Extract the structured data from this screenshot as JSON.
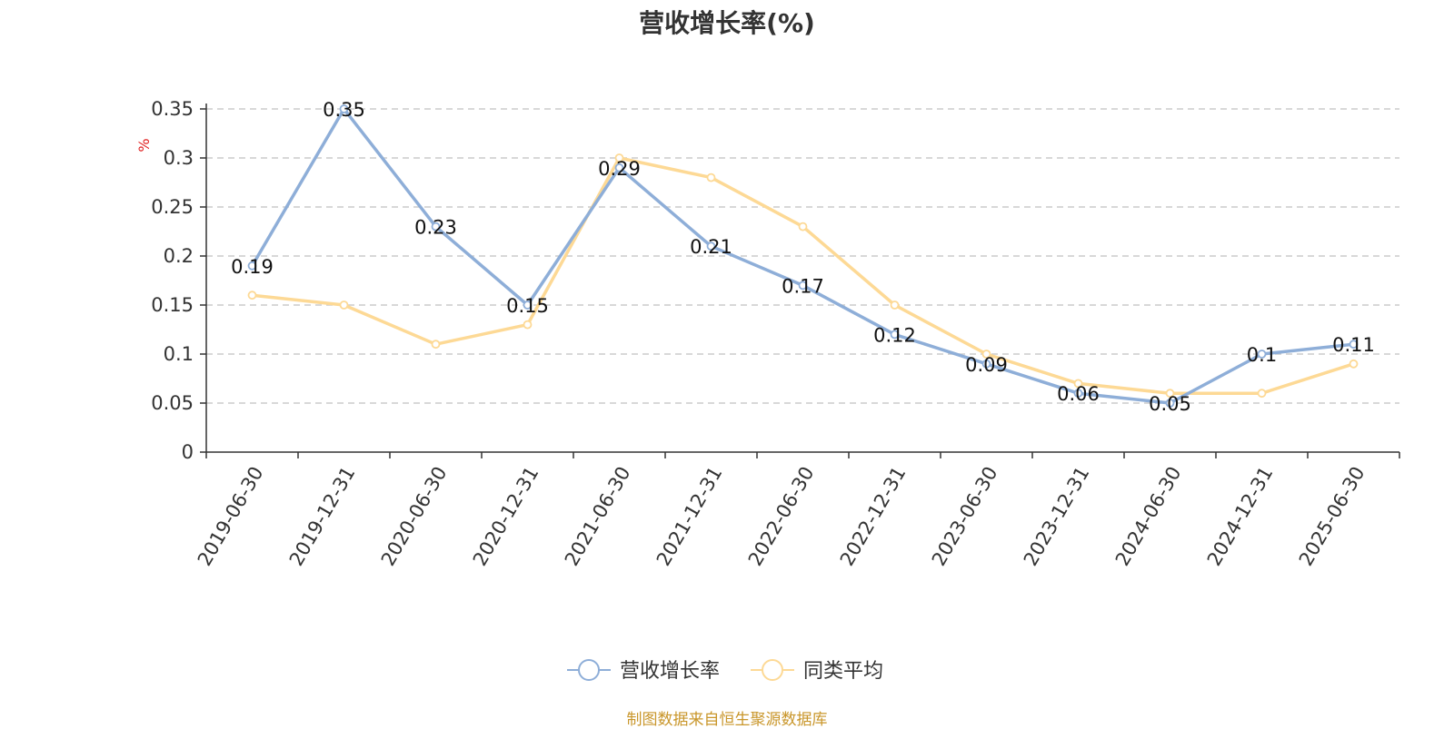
{
  "chart_data": {
    "type": "line",
    "title": "营收增长率(%)",
    "ylabel": "%",
    "ylim": [
      0,
      0.35
    ],
    "yticks": [
      "0",
      "0.05",
      "0.1",
      "0.15",
      "0.2",
      "0.25",
      "0.3",
      "0.35"
    ],
    "categories": [
      "2019-06-30",
      "2019-12-31",
      "2020-06-30",
      "2020-12-31",
      "2021-06-30",
      "2021-12-31",
      "2022-06-30",
      "2022-12-31",
      "2023-06-30",
      "2023-12-31",
      "2024-06-30",
      "2024-12-31",
      "2025-06-30"
    ],
    "grid": true,
    "legend_position": "bottom",
    "series": [
      {
        "name": "营收增长率",
        "color": "#8eaed8",
        "values": [
          0.19,
          0.35,
          0.23,
          0.15,
          0.29,
          0.21,
          0.17,
          0.12,
          0.09,
          0.06,
          0.05,
          0.1,
          0.11
        ],
        "labels": [
          "0.19",
          "0.35",
          "0.23",
          "0.15",
          "0.29",
          "0.21",
          "0.17",
          "0.12",
          "0.09",
          "0.06",
          "0.05",
          "0.1",
          "0.11"
        ]
      },
      {
        "name": "同类平均",
        "color": "#fdd995",
        "values": [
          0.16,
          0.15,
          0.11,
          0.13,
          0.3,
          0.28,
          0.23,
          0.15,
          0.1,
          0.07,
          0.06,
          0.06,
          0.09
        ]
      }
    ]
  },
  "source_note": "制图数据来自恒生聚源数据库",
  "colors": {
    "axis": "#333333",
    "grid": "#cccccc",
    "ylabel": "#e02020",
    "source": "#c9962a"
  }
}
